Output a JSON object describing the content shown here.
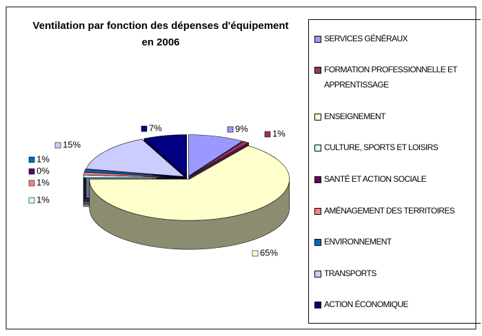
{
  "chart_data": {
    "type": "pie3d",
    "title": "Ventilation par fonction des dépenses d'équipement en 2006",
    "categories": [
      "SERVICES GÉNÉRAUX",
      "FORMATION PROFESSIONNELLE ET APPRENTISSAGE",
      "ENSEIGNEMENT",
      "CULTURE, SPORTS ET LOISIRS",
      "SANTÉ ET ACTION SOCIALE",
      "AMÉNAGEMENT DES TERRITOIRES",
      "ENVIRONNEMENT",
      "TRANSPORTS",
      "ACTION ÉCONOMIQUE"
    ],
    "values": [
      9,
      1,
      65,
      1,
      0,
      1,
      1,
      15,
      7
    ],
    "value_labels": [
      "9%",
      "1%",
      "65%",
      "1%",
      "0%",
      "1%",
      "1%",
      "15%",
      "7%"
    ],
    "colors": [
      "#9999ff",
      "#993366",
      "#ffffcc",
      "#ccffff",
      "#660066",
      "#ff8080",
      "#0066cc",
      "#ccccff",
      "#000080"
    ],
    "legend": "right"
  }
}
